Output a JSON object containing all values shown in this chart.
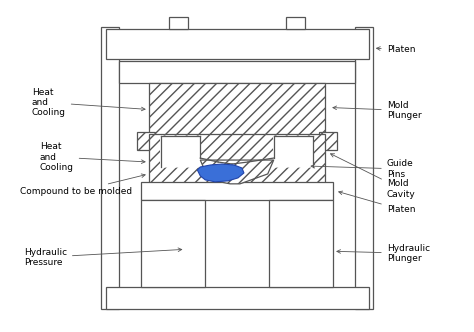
{
  "bg_color": "#ffffff",
  "line_color": "#555555",
  "blue_compound": "#3a6fd8",
  "font_size": 6.5,
  "labels": {
    "platen_top": "Platen",
    "mold_plunger": "Mold\nPlunger",
    "guide_pins": "Guide\nPins",
    "mold_cavity": "Mold\nCavity",
    "platen_mid": "Platen",
    "hydraulic_plunger": "Hydraulic\nPlunger",
    "heat_cooling_top": "Heat\nand\nCooling",
    "heat_cooling_bot": "Heat\nand\nCooling",
    "compound": "Compound to be molded",
    "hydraulic_pressure": "Hydraulic\nPressure"
  }
}
